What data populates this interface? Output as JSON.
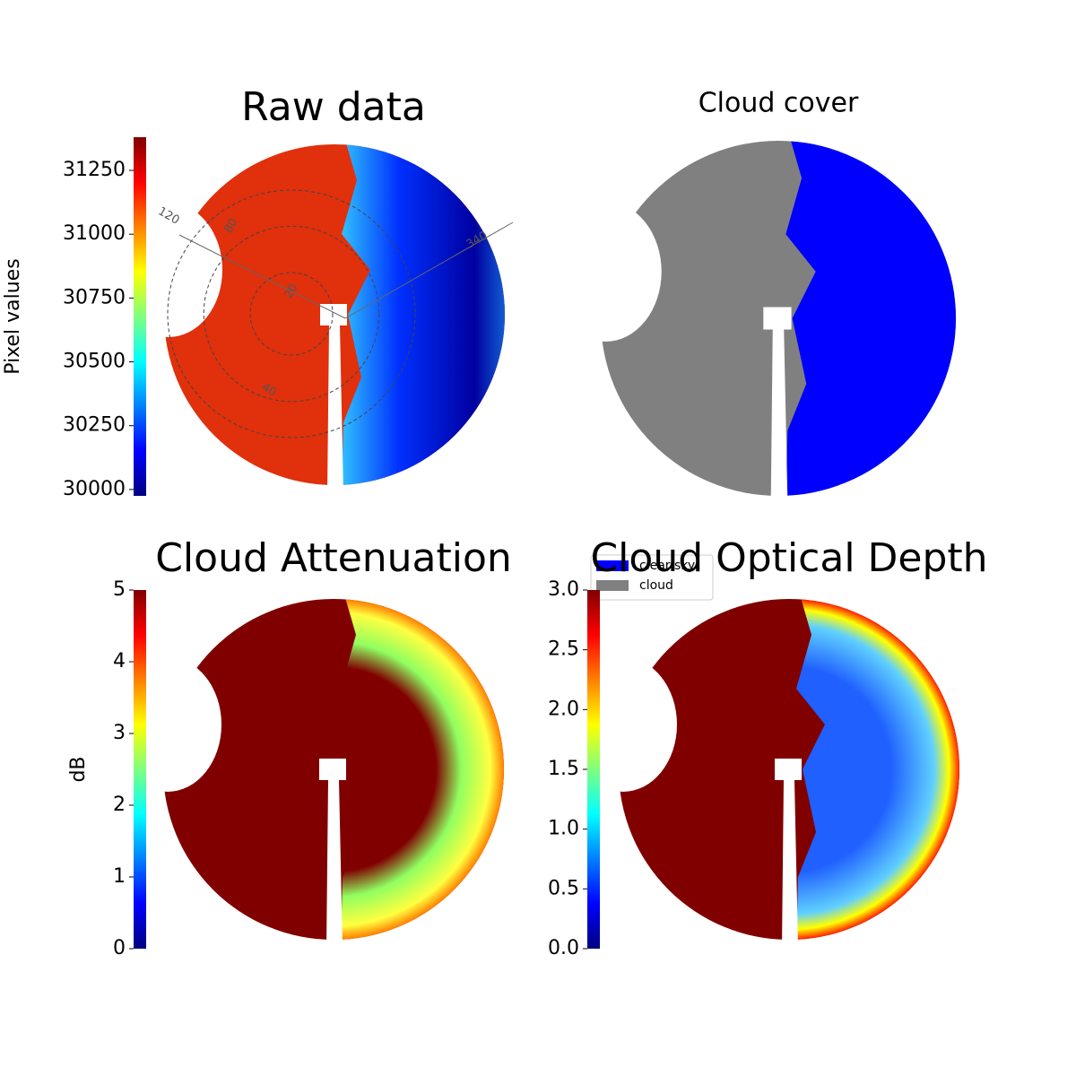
{
  "chart_data": [
    {
      "type": "image",
      "title": "Raw data",
      "ylabel": "Pixel values",
      "cmap": "jet",
      "ylim": [
        29975,
        31380
      ],
      "yticks": [
        30000,
        30250,
        30500,
        30750,
        31000,
        31250
      ],
      "annotations": [
        "120",
        "80",
        "340",
        "20",
        "40"
      ]
    },
    {
      "type": "image",
      "title": "Cloud cover",
      "legend": [
        {
          "name": "clear sky",
          "color": "#0000ff"
        },
        {
          "name": "cloud",
          "color": "#808080"
        }
      ]
    },
    {
      "type": "image",
      "title": "Cloud Attenuation",
      "ylabel": "dB",
      "cmap": "jet",
      "ylim": [
        0,
        5
      ],
      "yticks": [
        0,
        1,
        2,
        3,
        4,
        5
      ]
    },
    {
      "type": "image",
      "title": "Cloud Optical Depth",
      "cmap": "jet",
      "ylim": [
        0,
        3.0
      ],
      "yticks": [
        {
          "value": 0,
          "label": "0.0"
        },
        0.5,
        {
          "value": 1,
          "label": "1.0"
        },
        1.5,
        {
          "value": 2,
          "label": "2.0"
        },
        2.5,
        {
          "value": 3,
          "label": "3.0"
        }
      ]
    }
  ]
}
